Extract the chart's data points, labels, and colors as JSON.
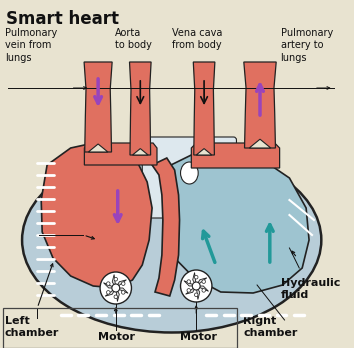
{
  "title": "Smart heart",
  "title_fontsize": 12,
  "title_fontweight": "bold",
  "bg_color": "#e8e3d0",
  "heart_outer_color": "#b8cdd8",
  "heart_outer_edge": "#222222",
  "left_chamber_color": "#e07060",
  "right_chamber_color": "#9ec4d0",
  "vessel_color": "#e07060",
  "white_area": "#dde8ee",
  "arrow_purple": "#9944bb",
  "arrow_teal": "#229999",
  "arrow_black": "#111111",
  "labels": {
    "pulmonary_vein": "Pulmonary\nvein from\nlungs",
    "aorta": "Aorta\nto body",
    "vena_cava": "Vena cava\nfrom body",
    "pulmonary_artery": "Pulmonary\nartery to\nlungs",
    "left_chamber": "Left\nchamber",
    "motor_left": "Motor",
    "motor_right": "Motor",
    "right_chamber": "Right\nchamber",
    "hydraulic": "Hydraulic\nfluid"
  },
  "label_fontsize": 7.0,
  "label_fontsize_bold": 8.0
}
